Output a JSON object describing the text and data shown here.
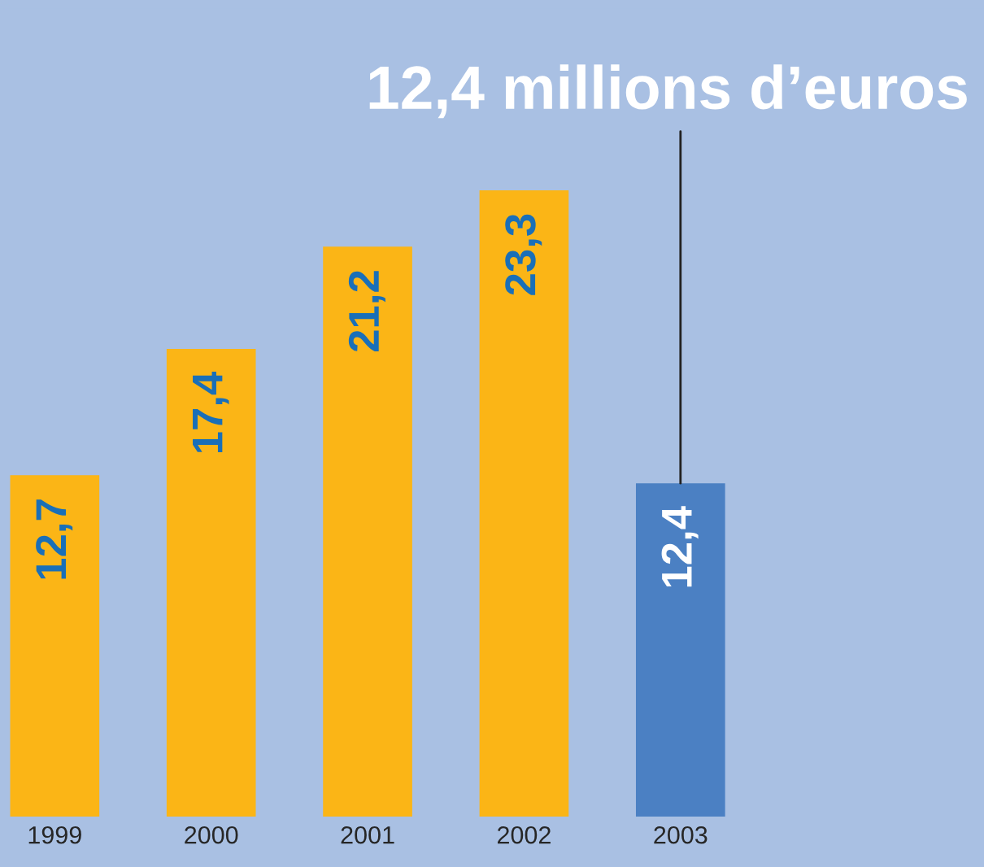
{
  "chart_data": {
    "type": "bar",
    "categories": [
      "1999",
      "2000",
      "2001",
      "2002",
      "2003"
    ],
    "values": [
      12.7,
      17.4,
      21.2,
      23.3,
      12.4
    ],
    "colors": [
      "#fbb516",
      "#fbb516",
      "#fbb516",
      "#fbb516",
      "#4b80c3"
    ],
    "value_labels": [
      "12,7",
      "17,4",
      "21,2",
      "23,3",
      "12,4"
    ],
    "annotations": [
      {
        "text": "12,4 millions d’euros",
        "x": "2003",
        "y": 12.4
      }
    ],
    "grid": false,
    "legend": false
  }
}
